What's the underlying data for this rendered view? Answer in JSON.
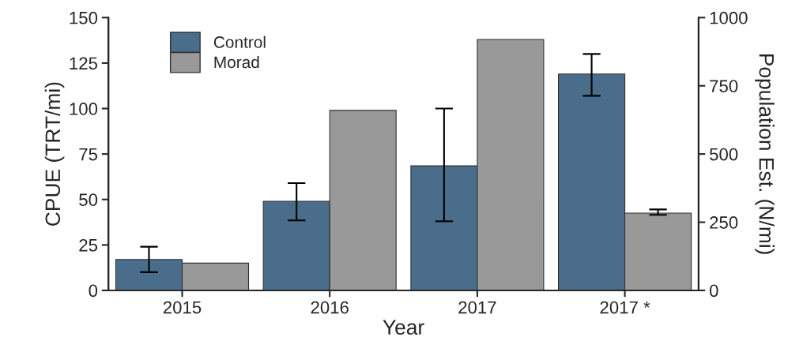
{
  "chart_data": {
    "type": "bar",
    "xlabel": "Year",
    "ylabel": "CPUE (TRT/mi)",
    "y2label": "Population Est. (N/mi)",
    "categories": [
      "2015",
      "2016",
      "2017",
      "2017 *"
    ],
    "series": [
      {
        "name": "Control",
        "color": "#4a6d8c",
        "values": [
          17,
          49,
          68.5,
          119
        ],
        "errors": [
          [
            10,
            24
          ],
          [
            38.5,
            59
          ],
          [
            38,
            100
          ],
          [
            107,
            130
          ]
        ]
      },
      {
        "name": "Morad",
        "color": "#999999",
        "values": [
          15,
          99,
          138,
          42.5
        ],
        "errors": [
          null,
          null,
          null,
          [
            41.5,
            44.5
          ]
        ]
      }
    ],
    "ylim": [
      0,
      150
    ],
    "yticks": [
      0,
      25,
      50,
      75,
      100,
      125,
      150
    ],
    "y2lim": [
      0,
      1000
    ],
    "y2ticks": [
      0,
      250,
      500,
      750,
      1000
    ],
    "legend": "top left",
    "grid": false
  }
}
